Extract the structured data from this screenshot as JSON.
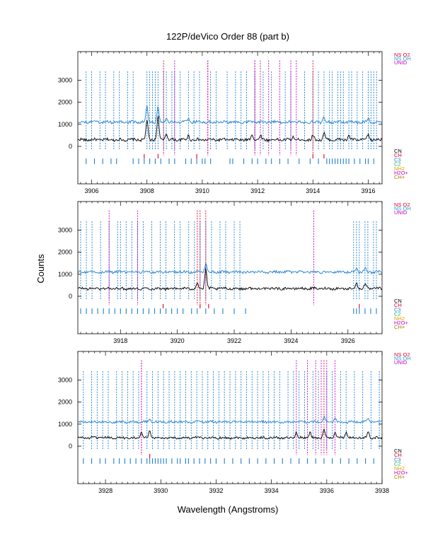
{
  "title": "122P/deVico Order 88 (part b)",
  "ylabel": "Counts",
  "xlabel": "Wavelength (Angstroms)",
  "colors": {
    "blue": "#1f7fd0",
    "red": "#e0002a",
    "magenta": "#c800c8",
    "black": "#000000"
  },
  "chart_data": [
    {
      "type": "line",
      "panel": "top",
      "xlim": [
        3905.5,
        3916.5
      ],
      "ylim": [
        -1700,
        4300
      ],
      "xticks": [
        3906,
        3908,
        3910,
        3912,
        3914,
        3916
      ],
      "yticks": [
        0,
        1000,
        2000,
        3000
      ],
      "series": [
        {
          "name": "spectrum",
          "color": "black",
          "baseline": 300,
          "noise": 60,
          "peaks": [
            [
              3908.0,
              900
            ],
            [
              3908.4,
              1100
            ],
            [
              3908.7,
              300
            ],
            [
              3909.5,
              200
            ],
            [
              3911.8,
              250
            ],
            [
              3912.1,
              200
            ],
            [
              3913.3,
              150
            ],
            [
              3914.0,
              200
            ],
            [
              3914.4,
              300
            ],
            [
              3915.3,
              200
            ],
            [
              3916.0,
              250
            ]
          ]
        },
        {
          "name": "spectrum-offset",
          "color": "blue",
          "baseline": 1100,
          "noise": 60,
          "peaks": [
            [
              3908.0,
              700
            ],
            [
              3908.4,
              700
            ],
            [
              3908.7,
              200
            ],
            [
              3909.5,
              150
            ],
            [
              3914.4,
              200
            ],
            [
              3916.0,
              200
            ]
          ]
        }
      ],
      "top_markers": {
        "blue": [
          3905.8,
          3906.0,
          3906.3,
          3906.5,
          3906.8,
          3907.0,
          3907.3,
          3907.5,
          3908.0,
          3908.1,
          3908.2,
          3908.3,
          3908.4,
          3908.6,
          3908.7,
          3908.9,
          3909.0,
          3909.2,
          3909.5,
          3909.7,
          3909.9,
          3910.3,
          3910.5,
          3910.9,
          3911.2,
          3911.4,
          3911.6,
          3911.9,
          3912.2,
          3912.5,
          3913.0,
          3913.2,
          3913.7,
          3914.0,
          3914.2,
          3914.4,
          3914.6,
          3914.7,
          3914.9,
          3915.0,
          3915.1,
          3915.3,
          3915.4,
          3915.6,
          3915.8,
          3916.0,
          3916.1,
          3916.2,
          3916.3
        ],
        "red": [
          3908.6,
          3910.2,
          3911.9,
          3914.0
        ],
        "magenta": [
          3909.0,
          3910.2,
          3911.9,
          3912.1,
          3912.4,
          3912.8,
          3913.2,
          3913.4
        ]
      },
      "bottom_markers": {
        "blue": [
          3905.8,
          3906.1,
          3906.4,
          3906.7,
          3906.9,
          3907.5,
          3907.7,
          3907.9,
          3908.1,
          3908.3,
          3908.5,
          3908.8,
          3909.0,
          3909.4,
          3909.6,
          3909.8,
          3910.0,
          3910.1,
          3910.3,
          3911.0,
          3911.1,
          3911.5,
          3911.8,
          3912.0,
          3912.3,
          3912.5,
          3912.8,
          3913.1,
          3913.5,
          3913.9,
          3914.2,
          3914.5,
          3914.6,
          3914.7,
          3914.8,
          3914.9,
          3915.0,
          3915.1,
          3915.2,
          3915.3,
          3915.5,
          3915.7,
          3915.9,
          3916.0,
          3916.2
        ],
        "red": [
          3907.9,
          3908.4,
          3909.8,
          3914.0,
          3914.4
        ]
      }
    },
    {
      "type": "line",
      "panel": "middle",
      "xlim": [
        3916.5,
        3927.2
      ],
      "ylim": [
        -1700,
        4300
      ],
      "xticks": [
        3918,
        3920,
        3922,
        3924,
        3926
      ],
      "yticks": [
        0,
        1000,
        2000,
        3000
      ],
      "series": [
        {
          "name": "spectrum",
          "color": "black",
          "baseline": 350,
          "noise": 55,
          "peaks": [
            [
              3920.7,
              250
            ],
            [
              3921.0,
              900
            ],
            [
              3926.3,
              250
            ],
            [
              3926.6,
              200
            ]
          ]
        },
        {
          "name": "spectrum-offset",
          "color": "blue",
          "baseline": 1100,
          "noise": 55,
          "peaks": [
            [
              3921.0,
              400
            ],
            [
              3926.3,
              200
            ],
            [
              3926.6,
              150
            ]
          ]
        }
      ],
      "top_markers": {
        "blue": [
          3916.6,
          3916.8,
          3917.0,
          3917.3,
          3917.6,
          3917.9,
          3918.0,
          3918.2,
          3918.4,
          3918.6,
          3918.8,
          3919.1,
          3919.4,
          3919.6,
          3919.9,
          3920.1,
          3920.4,
          3920.6,
          3920.8,
          3921.0,
          3921.2,
          3921.5,
          3921.7,
          3922.0,
          3922.2,
          3926.2,
          3926.3,
          3926.4,
          3926.6,
          3926.7,
          3926.9,
          3927.0
        ],
        "red": [
          3920.7,
          3920.8,
          3921.0
        ],
        "magenta": [
          3917.6,
          3918.6,
          3924.8
        ]
      },
      "bottom_markers": {
        "blue": [
          3916.6,
          3916.8,
          3917.0,
          3917.2,
          3917.4,
          3917.6,
          3917.8,
          3918.0,
          3918.2,
          3918.4,
          3918.6,
          3918.8,
          3919.0,
          3919.2,
          3919.4,
          3919.6,
          3919.8,
          3920.0,
          3920.2,
          3920.5,
          3920.7,
          3921.0,
          3921.3,
          3921.6,
          3922.0,
          3922.4,
          3926.2,
          3926.3,
          3926.4,
          3926.6,
          3926.8,
          3927.0
        ],
        "red": [
          3919.5,
          3920.8,
          3921.1,
          3926.4
        ]
      }
    },
    {
      "type": "line",
      "panel": "bottom",
      "xlim": [
        3927.0,
        3938.0
      ],
      "ylim": [
        -1700,
        4300
      ],
      "xticks": [
        3928,
        3930,
        3932,
        3934,
        3936,
        3938
      ],
      "yticks": [
        0,
        1000,
        2000,
        3000
      ],
      "series": [
        {
          "name": "spectrum",
          "color": "black",
          "baseline": 380,
          "noise": 50,
          "peaks": [
            [
              3929.3,
              250
            ],
            [
              3929.6,
              300
            ],
            [
              3934.9,
              250
            ],
            [
              3935.4,
              250
            ],
            [
              3935.9,
              350
            ],
            [
              3936.3,
              300
            ],
            [
              3936.7,
              250
            ],
            [
              3937.5,
              250
            ]
          ]
        },
        {
          "name": "spectrum-offset",
          "color": "blue",
          "baseline": 1100,
          "noise": 50,
          "peaks": [
            [
              3929.6,
              150
            ],
            [
              3935.9,
              250
            ],
            [
              3936.3,
              200
            ],
            [
              3937.5,
              150
            ]
          ]
        }
      ],
      "top_markers": {
        "blue": [
          3927.2,
          3927.5,
          3927.7,
          3927.9,
          3928.1,
          3928.4,
          3928.6,
          3928.8,
          3929.0,
          3929.2,
          3929.5,
          3929.7,
          3929.9,
          3930.1,
          3930.3,
          3930.5,
          3930.7,
          3930.9,
          3931.1,
          3931.3,
          3931.5,
          3931.7,
          3931.9,
          3932.1,
          3932.3,
          3932.5,
          3932.7,
          3932.9,
          3933.1,
          3933.3,
          3933.5,
          3933.7,
          3933.9,
          3934.1,
          3934.3,
          3934.6,
          3934.8,
          3935.0,
          3935.2,
          3935.5,
          3935.7,
          3936.0,
          3936.2,
          3936.5,
          3936.7,
          3937.0,
          3937.3,
          3937.6,
          3937.9
        ],
        "red": [
          3929.3,
          3935.9
        ],
        "magenta": [
          3929.3,
          3934.9,
          3935.3,
          3935.6,
          3935.8,
          3936.0,
          3936.3
        ]
      },
      "bottom_markers": {
        "blue": [
          3927.2,
          3927.5,
          3927.8,
          3928.0,
          3928.3,
          3928.5,
          3928.7,
          3928.9,
          3929.1,
          3929.3,
          3929.5,
          3929.6,
          3929.7,
          3929.8,
          3929.9,
          3930.0,
          3930.1,
          3930.2,
          3930.4,
          3930.6,
          3930.7,
          3930.9,
          3931.0,
          3931.2,
          3931.4,
          3931.6,
          3931.8,
          3932.0,
          3932.3,
          3932.6,
          3932.9,
          3933.2,
          3933.5,
          3933.8,
          3934.1,
          3934.4,
          3934.7,
          3935.0,
          3935.3,
          3935.6,
          3935.9,
          3936.2,
          3936.5,
          3936.8,
          3937.1,
          3937.4,
          3937.7
        ],
        "red": [
          3929.6
        ]
      }
    }
  ],
  "legend_top": [
    {
      "label": "NS O2",
      "color": "#e0002a"
    },
    {
      "label": "NS OH",
      "color": "#1f9fd0"
    },
    {
      "label": "UNID",
      "color": "#c800c8"
    }
  ],
  "legend_bottom": [
    {
      "label": "CN",
      "color": "#000000"
    },
    {
      "label": "CH",
      "color": "#e0002a"
    },
    {
      "label": "C3",
      "color": "#1f7fd0"
    },
    {
      "label": "C2",
      "color": "#20b060"
    },
    {
      "label": "NH2",
      "color": "#e0a000"
    },
    {
      "label": "H2O+",
      "color": "#c800c8"
    },
    {
      "label": "CH+",
      "color": "#a08000"
    }
  ]
}
